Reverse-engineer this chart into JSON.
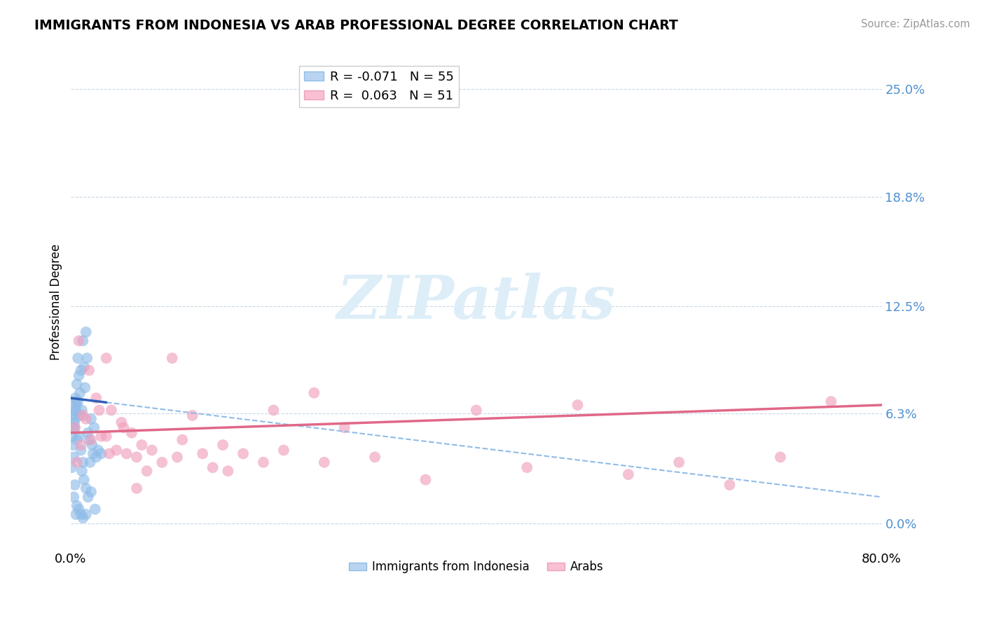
{
  "title": "IMMIGRANTS FROM INDONESIA VS ARAB PROFESSIONAL DEGREE CORRELATION CHART",
  "source": "Source: ZipAtlas.com",
  "ylabel": "Professional Degree",
  "ytick_values": [
    0.0,
    6.3,
    12.5,
    18.8,
    25.0
  ],
  "xlim": [
    0.0,
    80.0
  ],
  "ylim": [
    -1.5,
    27.0
  ],
  "legend_label_indonesia": "Immigrants from Indonesia",
  "legend_label_arabs": "Arabs",
  "blue_dot_color": "#90bce8",
  "pink_dot_color": "#f0a0be",
  "blue_line_color": "#3060b8",
  "pink_line_color": "#e06888",
  "blue_dash_color": "#90bce8",
  "watermark": "ZIPatlas",
  "watermark_color": "#ddeef8",
  "indonesia_x": [
    0.3,
    0.5,
    0.2,
    0.4,
    0.6,
    0.15,
    0.25,
    0.35,
    0.45,
    0.55,
    0.7,
    0.8,
    0.9,
    1.0,
    1.1,
    1.2,
    1.3,
    1.4,
    1.5,
    1.6,
    1.7,
    1.8,
    1.9,
    2.0,
    2.1,
    2.2,
    2.3,
    2.5,
    2.7,
    3.0,
    0.1,
    0.2,
    0.3,
    0.4,
    0.5,
    0.6,
    0.7,
    0.8,
    0.9,
    1.0,
    1.1,
    1.2,
    1.3,
    1.5,
    1.7,
    2.0,
    2.4,
    0.3,
    0.5,
    0.8,
    1.0,
    1.2,
    1.5,
    0.4,
    0.6
  ],
  "indonesia_y": [
    6.5,
    7.0,
    5.5,
    6.0,
    8.0,
    5.0,
    6.2,
    5.8,
    7.2,
    6.8,
    9.5,
    8.5,
    7.5,
    8.8,
    6.5,
    10.5,
    9.0,
    7.8,
    11.0,
    9.5,
    5.2,
    4.8,
    3.5,
    6.0,
    4.5,
    4.0,
    5.5,
    3.8,
    4.2,
    4.0,
    3.2,
    4.5,
    3.8,
    5.5,
    6.5,
    4.8,
    7.0,
    5.0,
    6.2,
    4.2,
    3.0,
    3.5,
    2.5,
    2.0,
    1.5,
    1.8,
    0.8,
    1.5,
    0.5,
    0.8,
    0.5,
    0.3,
    0.5,
    2.2,
    1.0
  ],
  "arabs_x": [
    0.4,
    0.8,
    1.2,
    1.8,
    2.5,
    3.0,
    3.5,
    4.0,
    4.5,
    5.0,
    5.5,
    6.0,
    6.5,
    7.0,
    8.0,
    9.0,
    10.0,
    11.0,
    12.0,
    13.0,
    14.0,
    15.0,
    17.0,
    19.0,
    21.0,
    24.0,
    27.0,
    30.0,
    35.0,
    40.0,
    45.0,
    50.0,
    55.0,
    60.0,
    65.0,
    70.0,
    75.0,
    1.5,
    2.0,
    2.8,
    3.8,
    5.2,
    7.5,
    10.5,
    15.5,
    20.0,
    25.0,
    0.6,
    1.0,
    3.5,
    6.5
  ],
  "arabs_y": [
    5.5,
    10.5,
    6.2,
    8.8,
    7.2,
    5.0,
    9.5,
    6.5,
    4.2,
    5.8,
    4.0,
    5.2,
    3.8,
    4.5,
    4.2,
    3.5,
    9.5,
    4.8,
    6.2,
    4.0,
    3.2,
    4.5,
    4.0,
    3.5,
    4.2,
    7.5,
    5.5,
    3.8,
    2.5,
    6.5,
    3.2,
    6.8,
    2.8,
    3.5,
    2.2,
    3.8,
    7.0,
    6.0,
    4.8,
    6.5,
    4.0,
    5.5,
    3.0,
    3.8,
    3.0,
    6.5,
    3.5,
    3.5,
    4.5,
    5.0,
    2.0
  ],
  "blue_line_x0": 0.0,
  "blue_line_y0": 7.2,
  "blue_line_x1": 80.0,
  "blue_line_y1": 1.5,
  "blue_solid_x1": 3.5,
  "pink_line_x0": 0.0,
  "pink_line_y0": 5.2,
  "pink_line_x1": 80.0,
  "pink_line_y1": 6.8
}
